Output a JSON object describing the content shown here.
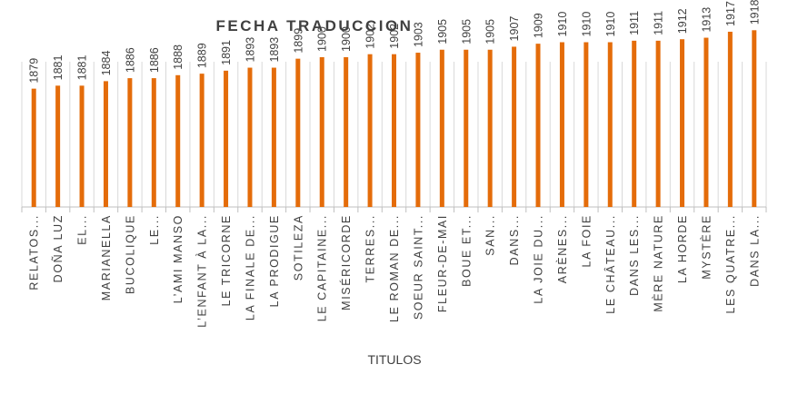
{
  "chart_data": {
    "type": "bar",
    "title": "FECHA TRADUCCION",
    "xlabel": "TITULOS",
    "ylabel": "",
    "ylim": [
      1800,
      1920
    ],
    "grid": false,
    "legend": "none",
    "bar_color": "#E46C0A",
    "categories": [
      "RELATOS...",
      "DOÑA LUZ",
      "EL...",
      "MARIANELLA",
      "BUCOLIQUE",
      "LE...",
      "L’AMI MANSO",
      "L’ENFANT À LA...",
      "LE TRICORNE",
      "LA FINALE DE...",
      "LA PRODIGUE",
      "SOTILEZA",
      "LE CAPITAINE...",
      "MISÉRICORDE",
      "TERRES...",
      "LE ROMAN DE...",
      "SOEUR SAINT...",
      "FLEUR-DE-MAI",
      "BOUE ET...",
      "SAN...",
      "DANS...",
      "LA JOIE DU...",
      "ARÈNES...",
      "LA FOIE",
      "LE CHÂTEAU...",
      "DANS LES...",
      "MÈRE NATURE",
      "LA HORDE",
      "MYSTÈRE",
      "LES QUATRE...",
      "DANS LA..."
    ],
    "values": [
      1879,
      1881,
      1881,
      1884,
      1886,
      1886,
      1888,
      1889,
      1891,
      1893,
      1893,
      1899,
      1900,
      1900,
      1902,
      1902,
      1903,
      1905,
      1905,
      1905,
      1907,
      1909,
      1910,
      1910,
      1910,
      1911,
      1911,
      1912,
      1913,
      1917,
      1918
    ],
    "data_labels": [
      "1879",
      "1881",
      "1881",
      "1884",
      "1886",
      "1886",
      "1888",
      "1889",
      "1891",
      "1893",
      "1893",
      "1899",
      "1900",
      "1900",
      "1902",
      "1902",
      "1903",
      "1905",
      "1905",
      "1905",
      "1907",
      "1909",
      "1910",
      "1910",
      "1910",
      "1911",
      "1911",
      "1912",
      "1913",
      "1917",
      "1918"
    ]
  }
}
